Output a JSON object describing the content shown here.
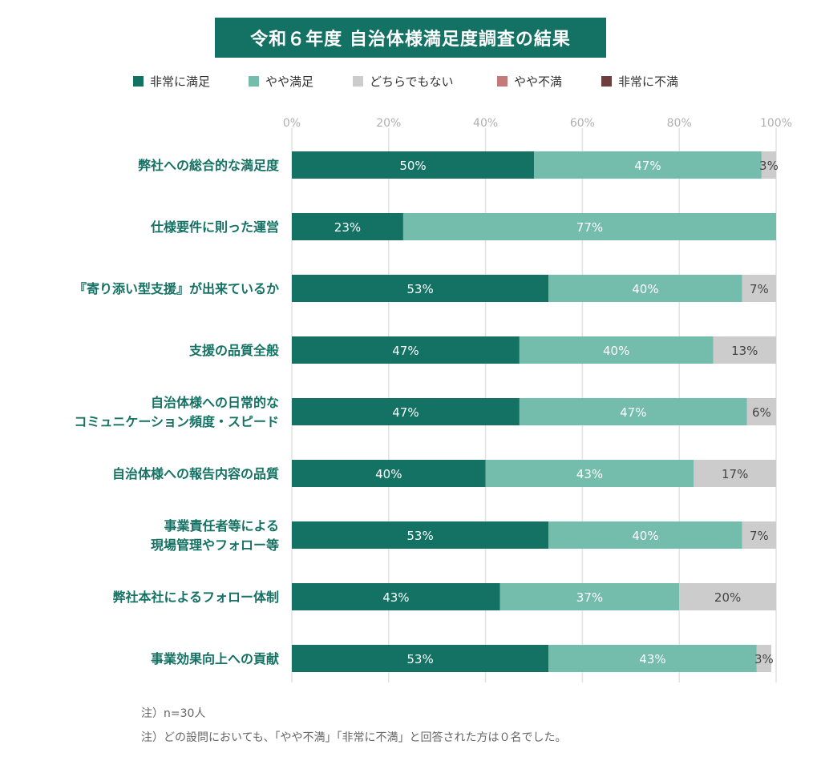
{
  "title": "令和６年度 自治体様満足度調査の結果",
  "legend": [
    {
      "label": "非常に満足",
      "color": "#147264"
    },
    {
      "label": "やや満足",
      "color": "#74bcab"
    },
    {
      "label": "どちらでもない",
      "color": "#cccccc"
    },
    {
      "label": "やや不満",
      "color": "#c47a7a"
    },
    {
      "label": "非常に不満",
      "color": "#6e3e3e"
    }
  ],
  "notes": [
    "注）n=30人",
    "注）どの設問においても、「やや不満」「非常に不満」と回答された方は０名でした。"
  ],
  "chart_data": {
    "type": "bar",
    "orientation": "horizontal",
    "stacked": true,
    "title": "令和６年度 自治体様満足度調査の結果",
    "xlim": [
      0,
      100
    ],
    "x_ticks": [
      {
        "value": 0,
        "label": "0%"
      },
      {
        "value": 20,
        "label": "20%"
      },
      {
        "value": 40,
        "label": "40%"
      },
      {
        "value": 60,
        "label": "60%"
      },
      {
        "value": 80,
        "label": "80%"
      },
      {
        "value": 100,
        "label": "100%"
      }
    ],
    "grid": true,
    "legend_position": "top",
    "categories": [
      [
        "弊社への総合的な満足度"
      ],
      [
        "仕様要件に則った運営"
      ],
      [
        "『寄り添い型支援』が出来ているか"
      ],
      [
        "支援の品質全般"
      ],
      [
        "自治体様への日常的な",
        "コミュニケーション頻度・スピード"
      ],
      [
        "自治体様への報告内容の品質"
      ],
      [
        "事業責任者等による",
        "現場管理やフォロー等"
      ],
      [
        "弊社本社によるフォロー体制"
      ],
      [
        "事業効果向上への貢献"
      ]
    ],
    "series": [
      {
        "name": "非常に満足",
        "color": "#147264",
        "label_color": "#ffffff",
        "values": [
          50,
          23,
          53,
          47,
          47,
          40,
          53,
          43,
          53
        ],
        "labels": [
          "50%",
          "23%",
          "53%",
          "47%",
          "47%",
          "40%",
          "53%",
          "43%",
          "53%"
        ]
      },
      {
        "name": "やや満足",
        "color": "#74bcab",
        "label_color": "#ffffff",
        "values": [
          47,
          77,
          40,
          40,
          47,
          43,
          40,
          37,
          43
        ],
        "labels": [
          "47%",
          "77%",
          "40%",
          "40%",
          "47%",
          "43%",
          "40%",
          "37%",
          "43%"
        ]
      },
      {
        "name": "どちらでもない",
        "color": "#cccccc",
        "label_color": "#444444",
        "values": [
          3,
          0,
          7,
          13,
          6,
          17,
          7,
          20,
          3
        ],
        "labels": [
          "3%",
          "",
          "7%",
          "13%",
          "6%",
          "17%",
          "7%",
          "20%",
          "3%"
        ]
      },
      {
        "name": "やや不満",
        "color": "#c47a7a",
        "label_color": "#ffffff",
        "values": [
          0,
          0,
          0,
          0,
          0,
          0,
          0,
          0,
          0
        ],
        "labels": [
          "",
          "",
          "",
          "",
          "",
          "",
          "",
          "",
          ""
        ]
      },
      {
        "name": "非常に不満",
        "color": "#6e3e3e",
        "label_color": "#ffffff",
        "values": [
          0,
          0,
          0,
          0,
          0,
          0,
          0,
          0,
          0
        ],
        "labels": [
          "",
          "",
          "",
          "",
          "",
          "",
          "",
          "",
          ""
        ]
      }
    ]
  }
}
